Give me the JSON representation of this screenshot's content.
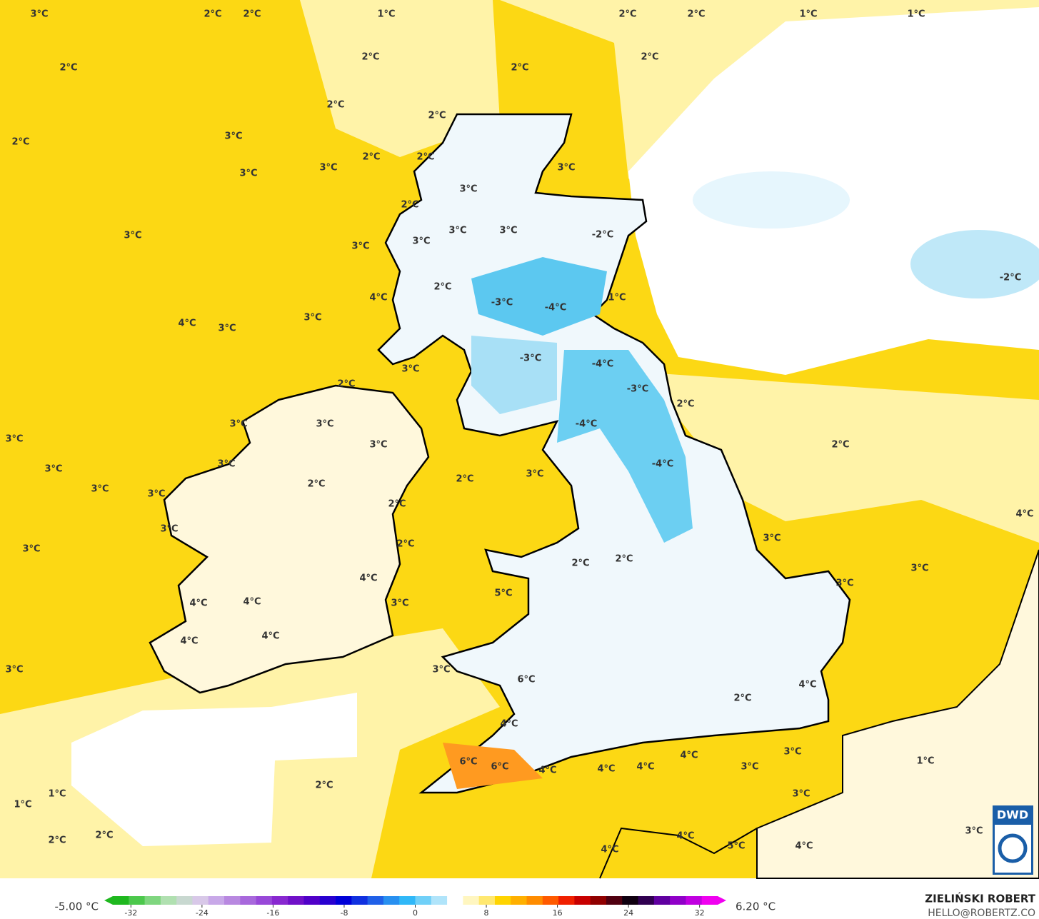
{
  "map": {
    "labels": [
      "3°C",
      "2°C",
      "2°C",
      "1°C",
      "2°C",
      "2°C",
      "1°C",
      "1°C",
      "2°C",
      "2°C",
      "2°C",
      "2°C",
      "2°C",
      "2°C",
      "3°C",
      "2°C",
      "2°C",
      "2°C",
      "3°C",
      "3°C",
      "3°C",
      "3°C",
      "2°C",
      "3°C",
      "3°C",
      "3°C",
      "-2°C",
      "3°C",
      "3°C",
      "-2°C",
      "2°C",
      "4°C",
      "1°C",
      "-3°C",
      "-4°C",
      "3°C",
      "4°C",
      "3°C",
      "-3°C",
      "-4°C",
      "3°C",
      "2°C",
      "-3°C",
      "2°C",
      "3°C",
      "-4°C",
      "3°C",
      "3°C",
      "3°C",
      "2°C",
      "3°C",
      "-4°C",
      "3°C",
      "2°C",
      "3°C",
      "2°C",
      "3°C",
      "3°C",
      "2°C",
      "4°C",
      "3°C",
      "3°C",
      "2°C",
      "3°C",
      "2°C",
      "2°C",
      "3°C",
      "4°C",
      "3°C",
      "5°C",
      "4°C",
      "4°C",
      "3°C",
      "4°C",
      "4°C",
      "3°C",
      "3°C",
      "6°C",
      "4°C",
      "2°C",
      "4°C",
      "3°C",
      "4°C",
      "6°C",
      "6°C",
      "3°C",
      "4°C",
      "4°C",
      "4°C",
      "1°C",
      "2°C",
      "1°C",
      "3°C",
      "1°C",
      "2°C",
      "4°C",
      "2°C",
      "3°C",
      "5°C",
      "4°C",
      "4°C"
    ]
  },
  "legend": {
    "min_label": "-5.00 °C",
    "max_label": "6.20 °C",
    "range": [
      -35,
      35
    ],
    "ticks": [
      -32,
      -24,
      -16,
      -8,
      0,
      8,
      16,
      24,
      32
    ],
    "colors": [
      "#1fb81f",
      "#4cc84c",
      "#7fd67f",
      "#b0e0b0",
      "#c8d8d0",
      "#d8c8e8",
      "#c8a8e8",
      "#b888e0",
      "#a868dc",
      "#9848d8",
      "#8828d0",
      "#7010c8",
      "#5000c8",
      "#2800d0",
      "#0000d8",
      "#1030e0",
      "#2060e8",
      "#2890f0",
      "#30b8f8",
      "#70d0f8",
      "#b0e4fa",
      "#ffffff",
      "#fff6c0",
      "#ffe870",
      "#ffd400",
      "#ffb000",
      "#ff8c00",
      "#ff5a00",
      "#f02000",
      "#c80000",
      "#900000",
      "#500010",
      "#100010",
      "#300050",
      "#6000a0",
      "#9000c8",
      "#c000e0",
      "#f000f0"
    ]
  },
  "credit": {
    "name": "ZIELIŃSKI ROBERT",
    "contact": "HELLO@ROBERTZ.CO"
  },
  "logo": "DWD"
}
